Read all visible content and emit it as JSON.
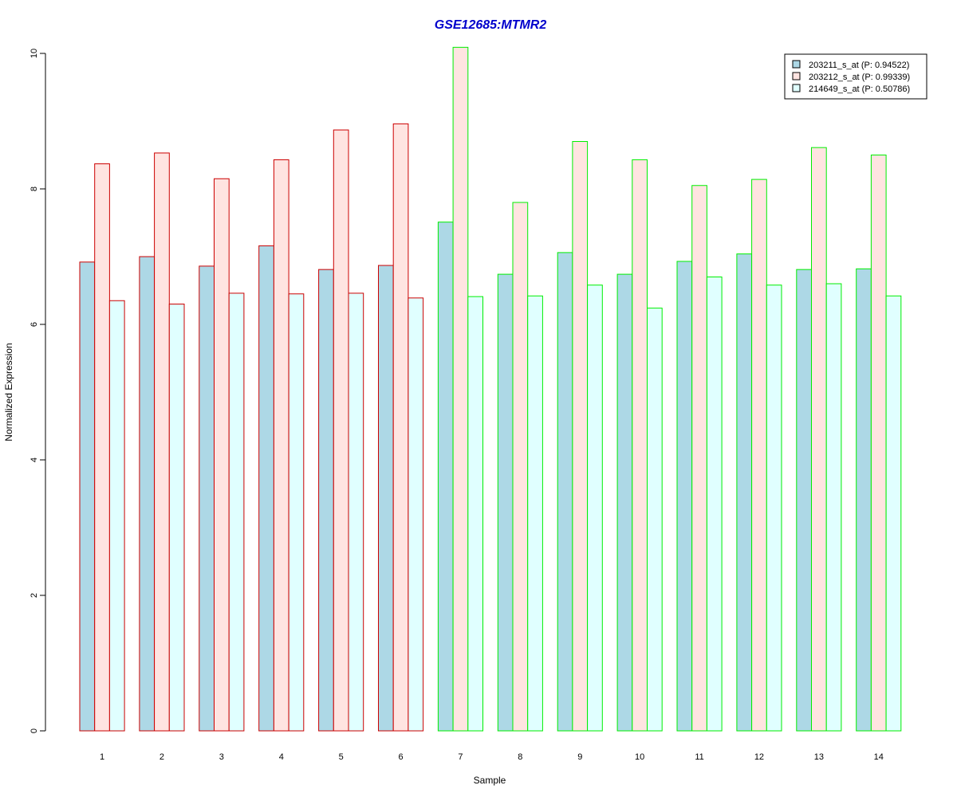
{
  "chart_data": {
    "type": "bar",
    "title": "GSE12685:MTMR2",
    "xlabel": "Sample",
    "ylabel": "Normalized Expression",
    "ylim": [
      0,
      10
    ],
    "yticks": [
      0,
      2,
      4,
      6,
      8,
      10
    ],
    "grid": false,
    "legend_position": "top-right",
    "categories": [
      "1",
      "2",
      "3",
      "4",
      "5",
      "6",
      "7",
      "8",
      "9",
      "10",
      "11",
      "12",
      "13",
      "14"
    ],
    "series": [
      {
        "name": "203211_s_at (P: 0.94522)",
        "fill": "#add8e6",
        "values": [
          6.92,
          7.0,
          6.86,
          7.16,
          6.81,
          6.87,
          7.51,
          6.74,
          7.06,
          6.74,
          6.93,
          7.04,
          6.81,
          6.82
        ]
      },
      {
        "name": "203212_s_at (P: 0.99339)",
        "fill": "#ffe4e1",
        "values": [
          8.37,
          8.53,
          8.15,
          8.43,
          8.87,
          8.96,
          10.09,
          7.8,
          8.7,
          8.43,
          8.05,
          8.14,
          8.61,
          8.5
        ]
      },
      {
        "name": "214649_s_at (P: 0.50786)",
        "fill": "#e0ffff",
        "values": [
          6.35,
          6.3,
          6.46,
          6.45,
          6.46,
          6.39,
          6.41,
          6.42,
          6.58,
          6.24,
          6.7,
          6.58,
          6.6,
          6.42
        ]
      }
    ],
    "group_border_colors": [
      "#cc0000",
      "#cc0000",
      "#cc0000",
      "#cc0000",
      "#cc0000",
      "#cc0000",
      "#00ee00",
      "#00ee00",
      "#00ee00",
      "#00ee00",
      "#00ee00",
      "#00ee00",
      "#00ee00",
      "#00ee00"
    ],
    "colors": {
      "title": "#0000cc",
      "axis": "#000000"
    }
  }
}
